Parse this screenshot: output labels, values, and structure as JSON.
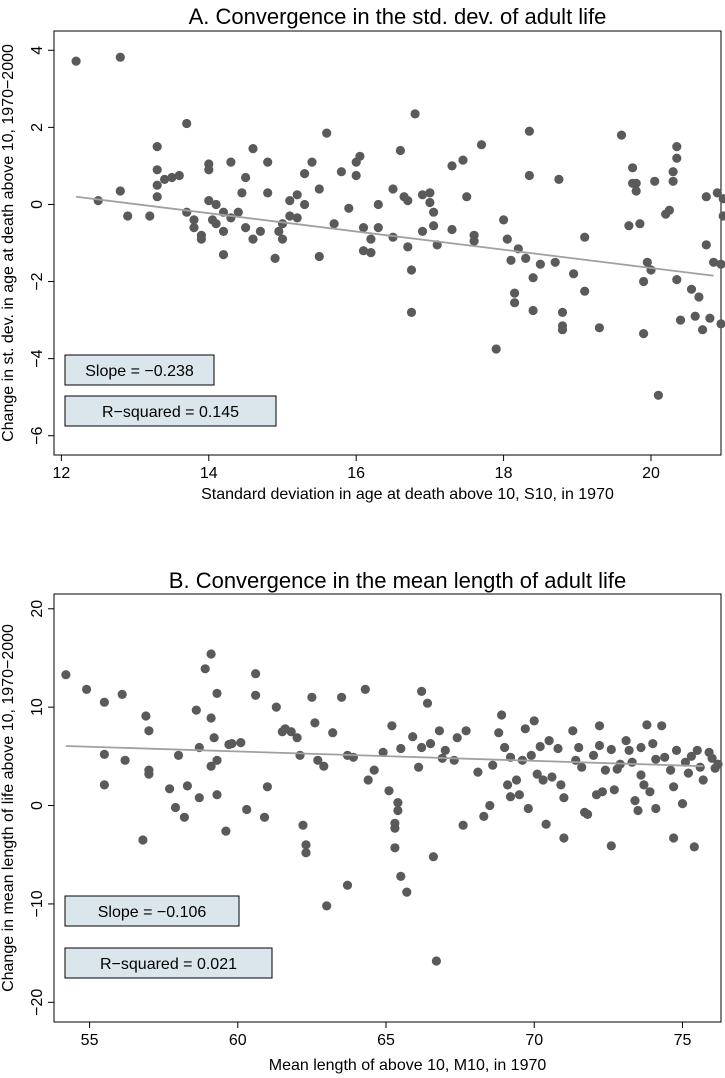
{
  "chart_data": [
    {
      "type": "scatter",
      "title": "A. Convergence in the std. dev. of adult life",
      "xlabel": "Standard deviation in age at death above 10, S10, in 1970",
      "ylabel": "Change in st. dev. in age at death above 10, 1970−2000",
      "xlim": [
        11.9,
        20.95
      ],
      "ylim": [
        -6.5,
        4.5
      ],
      "x_ticks": [
        12,
        14,
        16,
        18,
        20
      ],
      "y_ticks": [
        -6,
        -4,
        -2,
        0,
        2,
        4
      ],
      "tick_labels_x": [
        "12",
        "14",
        "16",
        "18",
        "20"
      ],
      "tick_labels_y": [
        "−6",
        "−4",
        "−2",
        "0",
        "2",
        "4"
      ],
      "grid": false,
      "colors": {
        "points": "#5a5a5a",
        "fit_line": "#a0a0a0",
        "annotation_box": "#dae6eb"
      },
      "fit_line": {
        "x": [
          12.2,
          20.85
        ],
        "y": [
          0.2,
          -1.85
        ]
      },
      "annotations": {
        "slope": "Slope = −0.238",
        "r_squared": "R−squared = 0.145"
      },
      "points": [
        [
          12.2,
          3.72
        ],
        [
          12.8,
          3.82
        ],
        [
          12.5,
          0.1
        ],
        [
          12.8,
          0.35
        ],
        [
          12.9,
          -0.3
        ],
        [
          13.2,
          -0.3
        ],
        [
          13.3,
          1.5
        ],
        [
          13.3,
          0.9
        ],
        [
          13.3,
          0.5
        ],
        [
          13.3,
          0.2
        ],
        [
          13.4,
          0.65
        ],
        [
          13.5,
          0.7
        ],
        [
          13.6,
          0.75
        ],
        [
          13.7,
          2.1
        ],
        [
          13.7,
          -0.2
        ],
        [
          13.8,
          -0.6
        ],
        [
          13.8,
          -0.4
        ],
        [
          13.9,
          -0.8
        ],
        [
          13.9,
          -0.9
        ],
        [
          14.0,
          1.05
        ],
        [
          14.0,
          0.9
        ],
        [
          14.0,
          0.1
        ],
        [
          14.05,
          -0.4
        ],
        [
          14.1,
          0.0
        ],
        [
          14.1,
          -0.5
        ],
        [
          14.2,
          -0.2
        ],
        [
          14.2,
          -0.7
        ],
        [
          14.2,
          -1.3
        ],
        [
          14.3,
          1.1
        ],
        [
          14.3,
          -0.35
        ],
        [
          14.4,
          -0.2
        ],
        [
          14.45,
          0.3
        ],
        [
          14.5,
          0.7
        ],
        [
          14.5,
          -0.6
        ],
        [
          14.6,
          1.45
        ],
        [
          14.6,
          -0.9
        ],
        [
          14.7,
          -0.7
        ],
        [
          14.8,
          1.1
        ],
        [
          14.8,
          0.3
        ],
        [
          14.9,
          -1.4
        ],
        [
          14.95,
          -0.7
        ],
        [
          15.0,
          -0.5
        ],
        [
          15.0,
          -0.9
        ],
        [
          15.1,
          0.1
        ],
        [
          15.1,
          -0.3
        ],
        [
          15.2,
          0.25
        ],
        [
          15.2,
          -0.35
        ],
        [
          15.3,
          0.8
        ],
        [
          15.3,
          0.0
        ],
        [
          15.4,
          1.1
        ],
        [
          15.5,
          0.4
        ],
        [
          15.5,
          -1.35
        ],
        [
          15.6,
          1.85
        ],
        [
          15.7,
          -0.5
        ],
        [
          15.8,
          0.85
        ],
        [
          15.9,
          -0.1
        ],
        [
          16.0,
          1.1
        ],
        [
          16.0,
          0.75
        ],
        [
          16.05,
          1.25
        ],
        [
          16.1,
          -0.6
        ],
        [
          16.1,
          -1.2
        ],
        [
          16.2,
          -0.9
        ],
        [
          16.2,
          -1.25
        ],
        [
          16.3,
          0.0
        ],
        [
          16.3,
          -0.6
        ],
        [
          16.5,
          0.4
        ],
        [
          16.5,
          -0.85
        ],
        [
          16.6,
          1.4
        ],
        [
          16.65,
          0.2
        ],
        [
          16.7,
          0.1
        ],
        [
          16.7,
          -1.1
        ],
        [
          16.75,
          -1.7
        ],
        [
          16.75,
          -2.8
        ],
        [
          16.8,
          2.35
        ],
        [
          16.9,
          0.25
        ],
        [
          16.9,
          -0.7
        ],
        [
          17.0,
          0.3
        ],
        [
          17.0,
          0.05
        ],
        [
          17.05,
          -0.2
        ],
        [
          17.05,
          -0.55
        ],
        [
          17.1,
          -1.05
        ],
        [
          17.3,
          1.0
        ],
        [
          17.3,
          -0.65
        ],
        [
          17.45,
          1.15
        ],
        [
          17.5,
          0.2
        ],
        [
          17.6,
          -0.8
        ],
        [
          17.6,
          -0.95
        ],
        [
          17.7,
          1.55
        ],
        [
          17.9,
          -3.75
        ],
        [
          18.0,
          -0.4
        ],
        [
          18.05,
          -0.9
        ],
        [
          18.1,
          -1.45
        ],
        [
          18.15,
          -2.3
        ],
        [
          18.15,
          -2.55
        ],
        [
          18.2,
          -1.15
        ],
        [
          18.3,
          -1.4
        ],
        [
          18.35,
          0.75
        ],
        [
          18.35,
          1.9
        ],
        [
          18.4,
          -2.75
        ],
        [
          18.4,
          -1.9
        ],
        [
          18.5,
          -1.55
        ],
        [
          18.7,
          -1.5
        ],
        [
          18.75,
          0.65
        ],
        [
          18.8,
          -2.8
        ],
        [
          18.8,
          -3.25
        ],
        [
          18.8,
          -3.15
        ],
        [
          18.95,
          -1.8
        ],
        [
          19.1,
          -2.25
        ],
        [
          19.1,
          -0.85
        ],
        [
          19.3,
          -3.2
        ],
        [
          19.6,
          1.8
        ],
        [
          19.7,
          -0.55
        ],
        [
          19.75,
          0.55
        ],
        [
          19.75,
          0.95
        ],
        [
          19.8,
          0.55
        ],
        [
          19.8,
          0.35
        ],
        [
          19.85,
          -0.5
        ],
        [
          19.9,
          -3.35
        ],
        [
          19.9,
          -2.0
        ],
        [
          19.95,
          -1.5
        ],
        [
          20.0,
          -1.7
        ],
        [
          20.05,
          0.6
        ],
        [
          20.1,
          -4.95
        ],
        [
          20.2,
          -0.25
        ],
        [
          20.25,
          -0.15
        ],
        [
          20.3,
          0.6
        ],
        [
          20.3,
          0.85
        ],
        [
          20.35,
          1.2
        ],
        [
          20.35,
          1.5
        ],
        [
          20.35,
          -1.95
        ],
        [
          20.4,
          -3.0
        ],
        [
          20.55,
          -2.2
        ],
        [
          20.6,
          -2.9
        ],
        [
          20.65,
          -2.4
        ],
        [
          20.7,
          -3.25
        ],
        [
          20.75,
          -1.05
        ],
        [
          20.75,
          0.2
        ],
        [
          20.8,
          -2.95
        ],
        [
          20.85,
          -1.5
        ],
        [
          20.9,
          0.3
        ],
        [
          20.95,
          -1.55
        ],
        [
          20.95,
          -3.1
        ],
        [
          20.98,
          0.15
        ],
        [
          20.98,
          -0.3
        ]
      ]
    },
    {
      "type": "scatter",
      "title": "B. Convergence in the mean length of adult life",
      "xlabel": "Mean length of above 10, M10, in 1970",
      "ylabel": "Change in mean length of life above 10, 1970−2000",
      "xlim": [
        53.8,
        76.3
      ],
      "ylim": [
        -22,
        21.5
      ],
      "x_ticks": [
        55,
        60,
        65,
        70,
        75
      ],
      "y_ticks": [
        -20,
        -10,
        0,
        10,
        20
      ],
      "tick_labels_x": [
        "55",
        "60",
        "65",
        "70",
        "75"
      ],
      "tick_labels_y": [
        "−20",
        "−10",
        "0",
        "10",
        "20"
      ],
      "grid": false,
      "colors": {
        "points": "#5a5a5a",
        "fit_line": "#a0a0a0",
        "annotation_box": "#dae6eb"
      },
      "fit_line": {
        "x": [
          54.2,
          75.7
        ],
        "y": [
          6.05,
          4.0
        ]
      },
      "annotations": {
        "slope": "Slope = −0.106",
        "r_squared": "R−squared = 0.021"
      },
      "points": [
        [
          54.2,
          13.3
        ],
        [
          54.9,
          11.8
        ],
        [
          55.5,
          10.5
        ],
        [
          55.5,
          5.2
        ],
        [
          55.5,
          2.1
        ],
        [
          56.1,
          11.3
        ],
        [
          56.2,
          4.6
        ],
        [
          56.8,
          -3.5
        ],
        [
          56.9,
          9.1
        ],
        [
          57.0,
          7.6
        ],
        [
          57.0,
          3.6
        ],
        [
          57.0,
          3.2
        ],
        [
          57.7,
          1.7
        ],
        [
          57.9,
          -0.2
        ],
        [
          58.0,
          5.1
        ],
        [
          58.2,
          -1.2
        ],
        [
          58.3,
          2.0
        ],
        [
          58.6,
          9.7
        ],
        [
          58.7,
          0.8
        ],
        [
          58.7,
          5.9
        ],
        [
          58.9,
          13.9
        ],
        [
          59.1,
          15.4
        ],
        [
          59.1,
          8.9
        ],
        [
          59.1,
          4.0
        ],
        [
          59.2,
          6.9
        ],
        [
          59.3,
          11.4
        ],
        [
          59.3,
          1.1
        ],
        [
          59.3,
          4.6
        ],
        [
          59.6,
          -2.6
        ],
        [
          59.7,
          6.2
        ],
        [
          59.8,
          6.3
        ],
        [
          60.1,
          6.4
        ],
        [
          60.3,
          -0.4
        ],
        [
          60.6,
          11.2
        ],
        [
          60.6,
          13.4
        ],
        [
          60.9,
          -1.2
        ],
        [
          61.0,
          1.9
        ],
        [
          61.3,
          10.0
        ],
        [
          61.5,
          7.5
        ],
        [
          61.6,
          7.8
        ],
        [
          61.8,
          7.5
        ],
        [
          62.0,
          6.9
        ],
        [
          62.1,
          5.1
        ],
        [
          62.2,
          -2.0
        ],
        [
          62.3,
          -4.0
        ],
        [
          62.3,
          -4.8
        ],
        [
          62.5,
          11.0
        ],
        [
          62.6,
          8.4
        ],
        [
          62.7,
          4.6
        ],
        [
          62.9,
          4.0
        ],
        [
          63.0,
          -10.2
        ],
        [
          63.2,
          7.4
        ],
        [
          63.5,
          11.0
        ],
        [
          63.7,
          -8.1
        ],
        [
          63.7,
          5.1
        ],
        [
          63.9,
          4.9
        ],
        [
          64.3,
          11.8
        ],
        [
          64.4,
          2.6
        ],
        [
          64.6,
          3.6
        ],
        [
          64.9,
          5.4
        ],
        [
          65.1,
          1.5
        ],
        [
          65.2,
          8.1
        ],
        [
          65.3,
          -2.3
        ],
        [
          65.3,
          -1.8
        ],
        [
          65.3,
          -4.3
        ],
        [
          65.4,
          0.3
        ],
        [
          65.4,
          -0.5
        ],
        [
          65.5,
          -7.2
        ],
        [
          65.5,
          5.8
        ],
        [
          65.7,
          -8.8
        ],
        [
          65.9,
          7.0
        ],
        [
          66.1,
          3.9
        ],
        [
          66.2,
          5.9
        ],
        [
          66.2,
          11.6
        ],
        [
          66.4,
          10.4
        ],
        [
          66.5,
          6.3
        ],
        [
          66.6,
          -5.2
        ],
        [
          66.7,
          -15.8
        ],
        [
          66.8,
          7.6
        ],
        [
          66.9,
          4.8
        ],
        [
          67.0,
          5.6
        ],
        [
          67.3,
          4.6
        ],
        [
          67.4,
          6.9
        ],
        [
          67.6,
          -2.0
        ],
        [
          67.7,
          7.6
        ],
        [
          68.1,
          3.4
        ],
        [
          68.3,
          -1.1
        ],
        [
          68.5,
          0.0
        ],
        [
          68.6,
          4.1
        ],
        [
          68.8,
          7.4
        ],
        [
          68.9,
          9.2
        ],
        [
          69.0,
          5.9
        ],
        [
          69.1,
          2.1
        ],
        [
          69.2,
          0.9
        ],
        [
          69.2,
          4.9
        ],
        [
          69.4,
          2.6
        ],
        [
          69.5,
          1.1
        ],
        [
          69.6,
          4.6
        ],
        [
          69.7,
          7.8
        ],
        [
          69.8,
          -0.3
        ],
        [
          69.9,
          5.1
        ],
        [
          70.0,
          8.6
        ],
        [
          70.1,
          3.2
        ],
        [
          70.2,
          6.0
        ],
        [
          70.3,
          2.6
        ],
        [
          70.4,
          -1.9
        ],
        [
          70.5,
          6.6
        ],
        [
          70.6,
          2.9
        ],
        [
          70.8,
          5.8
        ],
        [
          70.9,
          2.1
        ],
        [
          71.0,
          0.8
        ],
        [
          71.0,
          -3.3
        ],
        [
          71.3,
          7.6
        ],
        [
          71.4,
          4.6
        ],
        [
          71.5,
          5.9
        ],
        [
          71.6,
          3.9
        ],
        [
          71.7,
          -0.7
        ],
        [
          71.8,
          -0.9
        ],
        [
          72.0,
          5.1
        ],
        [
          72.1,
          1.1
        ],
        [
          72.2,
          8.1
        ],
        [
          72.2,
          6.1
        ],
        [
          72.3,
          1.4
        ],
        [
          72.4,
          3.6
        ],
        [
          72.6,
          -4.1
        ],
        [
          72.6,
          5.7
        ],
        [
          72.7,
          1.6
        ],
        [
          72.8,
          3.7
        ],
        [
          72.9,
          4.2
        ],
        [
          73.1,
          6.6
        ],
        [
          73.2,
          5.6
        ],
        [
          73.3,
          4.4
        ],
        [
          73.4,
          0.5
        ],
        [
          73.5,
          -0.5
        ],
        [
          73.6,
          3.1
        ],
        [
          73.6,
          5.9
        ],
        [
          73.7,
          2.1
        ],
        [
          73.8,
          8.2
        ],
        [
          73.9,
          1.4
        ],
        [
          74.0,
          6.3
        ],
        [
          74.1,
          4.7
        ],
        [
          74.1,
          -0.3
        ],
        [
          74.3,
          8.1
        ],
        [
          74.4,
          4.9
        ],
        [
          74.6,
          3.6
        ],
        [
          74.7,
          1.9
        ],
        [
          74.7,
          -3.3
        ],
        [
          74.8,
          5.6
        ],
        [
          75.0,
          0.2
        ],
        [
          75.1,
          4.4
        ],
        [
          75.2,
          3.3
        ],
        [
          75.3,
          5.0
        ],
        [
          75.4,
          -4.2
        ],
        [
          75.5,
          5.6
        ],
        [
          75.6,
          3.9
        ],
        [
          75.7,
          2.6
        ],
        [
          75.9,
          5.4
        ],
        [
          76.0,
          4.8
        ],
        [
          76.1,
          3.8
        ],
        [
          76.2,
          4.2
        ]
      ]
    }
  ]
}
